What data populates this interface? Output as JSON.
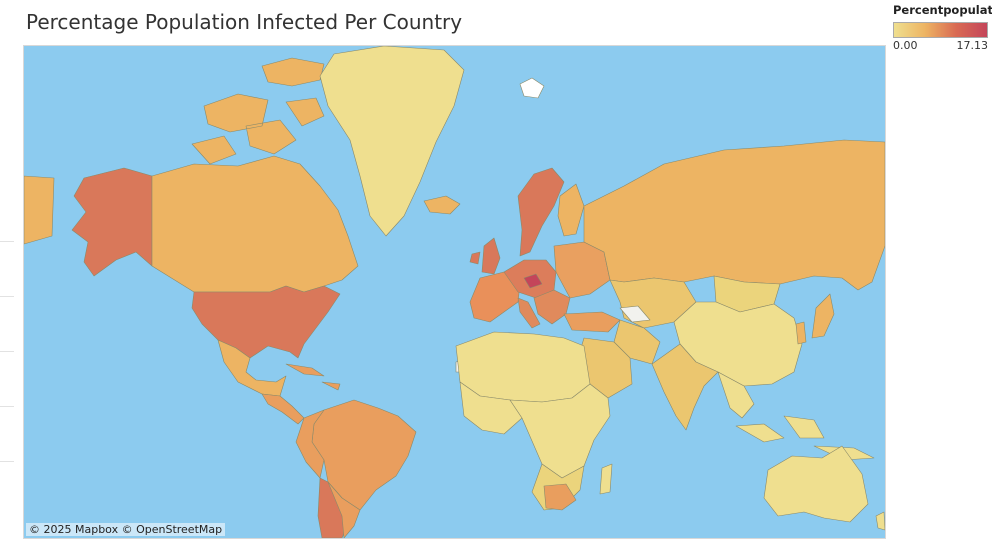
{
  "title": "Percentage Population Infected Per Country",
  "legend": {
    "title": "Percentpopulat...",
    "min_label": "0.00",
    "max_label": "17.13"
  },
  "attribution": "© 2025 Mapbox  © OpenStreetMap",
  "colors": {
    "ocean": "#8ccbef",
    "low": "#efdf8f",
    "mid": "#edb463",
    "high": "#d96a53",
    "max": "#c4455a",
    "no_data": "#f2f2ee"
  }
}
